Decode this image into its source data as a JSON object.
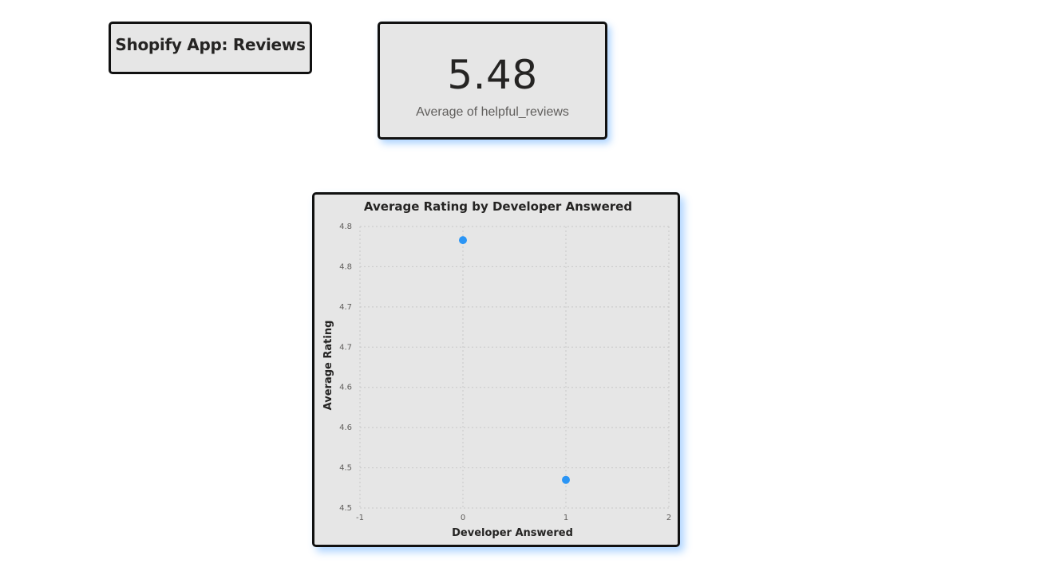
{
  "header": {
    "title": "Shopify App: Reviews"
  },
  "kpi": {
    "value": "5.48",
    "label": "Average of helpful_reviews"
  },
  "chart_data": {
    "type": "scatter",
    "title": "Average Rating by Developer Answered",
    "xlabel": "Developer Answered",
    "ylabel": "Average Rating",
    "xlim": [
      -1,
      2
    ],
    "ylim": [
      4.5,
      4.85
    ],
    "x_ticks": [
      "-1",
      "0",
      "1",
      "2"
    ],
    "y_ticks": [
      "4.8",
      "4.8",
      "4.7",
      "4.7",
      "4.6",
      "4.6",
      "4.5",
      "4.5"
    ],
    "grid": true,
    "point_color": "#2b95f5",
    "points": [
      {
        "x": 0,
        "y": 4.833
      },
      {
        "x": 1,
        "y": 4.535
      }
    ]
  }
}
